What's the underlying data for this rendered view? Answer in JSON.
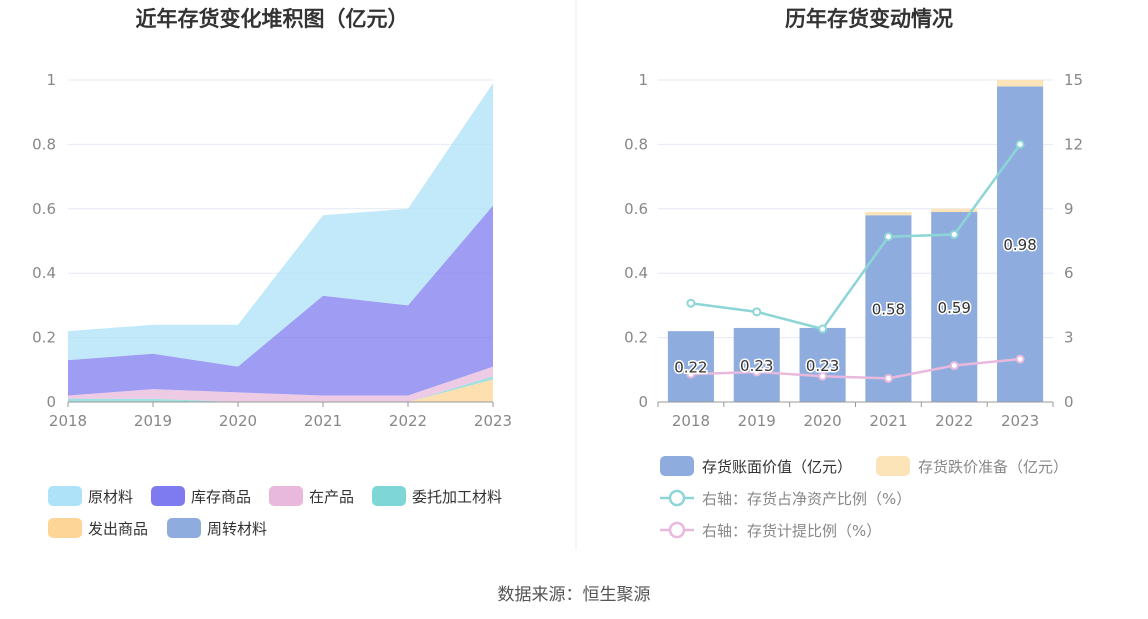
{
  "source_text": "数据来源：恒生聚源",
  "chart_data": [
    {
      "type": "area",
      "stacked": true,
      "title": "近年存货变化堆积图（亿元）",
      "categories": [
        "2018",
        "2019",
        "2020",
        "2021",
        "2022",
        "2023"
      ],
      "ylim": [
        0,
        1
      ],
      "yticks": [
        "0",
        "0.2",
        "0.4",
        "0.6",
        "0.8",
        "1"
      ],
      "grid": true,
      "legend_position": "bottom",
      "series": [
        {
          "name": "发出商品",
          "color": "#fdd596",
          "values": [
            0,
            0,
            0,
            0,
            0,
            0.07
          ]
        },
        {
          "name": "委托加工材料",
          "color": "#7fd6d6",
          "values": [
            0.01,
            0.01,
            0,
            0,
            0,
            0.01
          ]
        },
        {
          "name": "在产品",
          "color": "#e8b9dc",
          "values": [
            0.01,
            0.03,
            0.03,
            0.02,
            0.02,
            0.03
          ]
        },
        {
          "name": "周转材料",
          "color": "#8eadde",
          "values": [
            0,
            0,
            0,
            0,
            0,
            0
          ]
        },
        {
          "name": "库存商品",
          "color": "#7d7bef",
          "values": [
            0.11,
            0.11,
            0.08,
            0.31,
            0.28,
            0.5
          ]
        },
        {
          "name": "原材料",
          "color": "#aee2f8",
          "values": [
            0.09,
            0.09,
            0.13,
            0.25,
            0.3,
            0.38
          ]
        }
      ],
      "legend_order": [
        "原材料",
        "库存商品",
        "在产品",
        "委托加工材料",
        "发出商品",
        "周转材料"
      ]
    },
    {
      "type": "bar",
      "title": "历年存货变动情况",
      "categories": [
        "2018",
        "2019",
        "2020",
        "2021",
        "2022",
        "2023"
      ],
      "ylim": [
        0,
        1
      ],
      "yticks": [
        "0",
        "0.2",
        "0.4",
        "0.6",
        "0.8",
        "1"
      ],
      "y2lim": [
        0,
        15
      ],
      "y2ticks": [
        "0",
        "3",
        "6",
        "9",
        "12",
        "15"
      ],
      "grid": true,
      "legend_position": "bottom",
      "bar_series": [
        {
          "name": "存货账面价值（亿元）",
          "color": "#8eadde",
          "values": [
            0.22,
            0.23,
            0.23,
            0.58,
            0.59,
            0.98
          ],
          "labels": [
            "0.22",
            "0.23",
            "0.23",
            "0.58",
            "0.59",
            "0.98"
          ]
        },
        {
          "name": "存货跌价准备（亿元）",
          "color": "#fde4b8",
          "values": [
            0,
            0,
            0,
            0.01,
            0.01,
            0.02
          ]
        }
      ],
      "line_series": [
        {
          "name": "右轴：存货占净资产比例（%）",
          "color": "#8dd5d7",
          "axis": "right",
          "values": [
            4.6,
            4.2,
            3.4,
            7.7,
            7.8,
            12.0
          ]
        },
        {
          "name": "右轴：存货计提比例（%）",
          "color": "#e8b9dc",
          "axis": "right",
          "values": [
            1.3,
            1.4,
            1.2,
            1.1,
            1.7,
            2.0
          ]
        }
      ]
    }
  ]
}
